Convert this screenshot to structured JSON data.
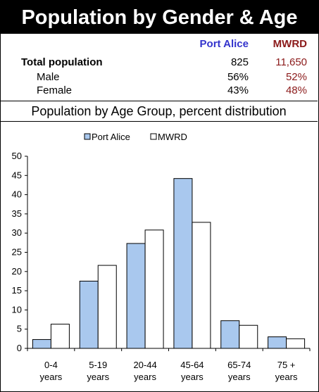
{
  "header": {
    "title": "Population by Gender & Age"
  },
  "table": {
    "columns": [
      {
        "label": "Port Alice",
        "color": "#3333cc"
      },
      {
        "label": "MWRD",
        "color": "#8b1a1a"
      }
    ],
    "rows": [
      {
        "label": "Total population",
        "bold": true,
        "v1": "825",
        "v2": "11,650"
      },
      {
        "label": "Male",
        "bold": false,
        "v1": "56%",
        "v2": "52%"
      },
      {
        "label": "Female",
        "bold": false,
        "v1": "43%",
        "v2": "48%"
      }
    ]
  },
  "chart_data": {
    "type": "bar",
    "title": "Population by Age Group, percent distribution",
    "categories": [
      [
        "0-4",
        "years"
      ],
      [
        "5-19",
        "years"
      ],
      [
        "20-44",
        "years"
      ],
      [
        "45-64",
        "years"
      ],
      [
        "65-74",
        "years"
      ],
      [
        "75 +",
        "years"
      ]
    ],
    "series": [
      {
        "name": "Port Alice",
        "color": "#a9c8ee",
        "values": [
          2.3,
          17.5,
          27.3,
          44.2,
          7.2,
          3.0
        ]
      },
      {
        "name": "MWRD",
        "color": "#ffffff",
        "values": [
          6.3,
          21.6,
          30.8,
          32.8,
          6.0,
          2.5
        ]
      }
    ],
    "ylim": [
      0,
      50
    ],
    "yticks": [
      0,
      5,
      10,
      15,
      20,
      25,
      30,
      35,
      40,
      45,
      50
    ],
    "grid": false,
    "legend_position": "top"
  }
}
